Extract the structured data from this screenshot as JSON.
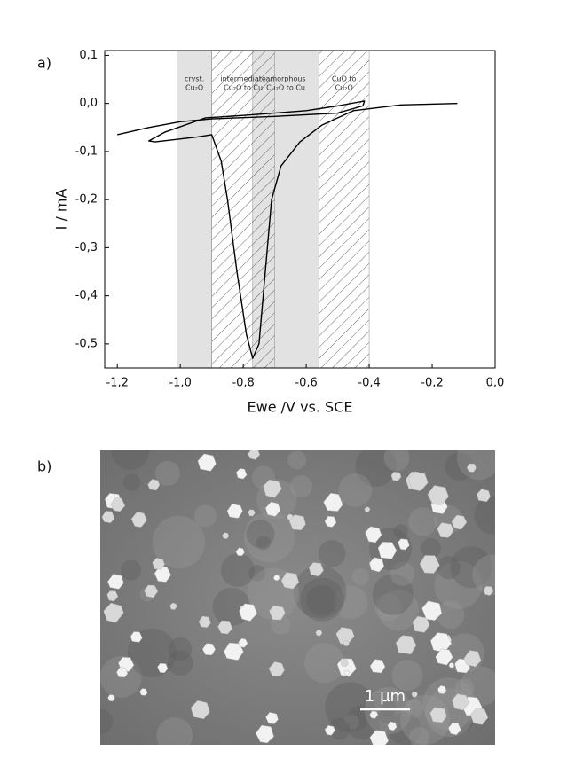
{
  "chart_data": {
    "type": "line",
    "panel_label": "a)",
    "xlabel": "Ewe /V vs. SCE",
    "ylabel": "I / mA",
    "xlim": [
      -1.24,
      0.0
    ],
    "ylim": [
      -0.55,
      0.11
    ],
    "xticks": [
      {
        "value": -1.2,
        "label": "-1,2"
      },
      {
        "value": -1.0,
        "label": "-1,0"
      },
      {
        "value": -0.8,
        "label": "-0,8"
      },
      {
        "value": -0.6,
        "label": "-0,6"
      },
      {
        "value": -0.4,
        "label": "-0,4"
      },
      {
        "value": -0.2,
        "label": "-0,2"
      },
      {
        "value": 0.0,
        "label": "0,0"
      }
    ],
    "yticks": [
      {
        "value": 0.1,
        "label": "0,1"
      },
      {
        "value": 0.0,
        "label": "0,0"
      },
      {
        "value": -0.1,
        "label": "-0,1"
      },
      {
        "value": -0.2,
        "label": "-0,2"
      },
      {
        "value": -0.3,
        "label": "-0,3"
      },
      {
        "value": -0.4,
        "label": "-0,4"
      },
      {
        "value": -0.5,
        "label": "-0,5"
      }
    ],
    "regions": [
      {
        "label": [
          "cryst.",
          "Cu₂O"
        ],
        "x": [
          -1.01,
          -0.9
        ],
        "style": "shaded"
      },
      {
        "label": [
          "intermediate",
          "Cu₂O to Cu"
        ],
        "x": [
          -0.9,
          -0.7
        ],
        "style": "hatched"
      },
      {
        "label": [
          "amorphous",
          "Cu₂O to Cu"
        ],
        "x": [
          -0.77,
          -0.56
        ],
        "style": "shaded"
      },
      {
        "label": [
          "CuO to",
          "Cu₂O"
        ],
        "x": [
          -0.56,
          -0.4
        ],
        "style": "hatched"
      }
    ],
    "series": [
      {
        "color": "#000000",
        "x": [
          -1.2,
          -1.1,
          -1.0,
          -0.9,
          -0.7,
          -0.5,
          -0.42,
          -0.415,
          -0.5,
          -0.6,
          -0.8,
          -0.92,
          -1.05,
          -1.1,
          -1.08,
          -0.95,
          -0.9,
          -0.87,
          -0.85,
          -0.82,
          -0.79,
          -0.77,
          -0.75,
          -0.73,
          -0.71,
          -0.68,
          -0.62,
          -0.55,
          -0.45,
          -0.3,
          -0.12
        ],
        "values": [
          -0.065,
          -0.05,
          -0.038,
          -0.032,
          -0.027,
          -0.02,
          -0.005,
          0.005,
          -0.005,
          -0.015,
          -0.025,
          -0.03,
          -0.06,
          -0.078,
          -0.08,
          -0.07,
          -0.065,
          -0.12,
          -0.2,
          -0.35,
          -0.48,
          -0.53,
          -0.5,
          -0.35,
          -0.2,
          -0.13,
          -0.08,
          -0.045,
          -0.015,
          -0.003,
          0.0
        ]
      }
    ]
  },
  "image": {
    "panel_label": "b)",
    "scale_bar": "1 µm"
  }
}
